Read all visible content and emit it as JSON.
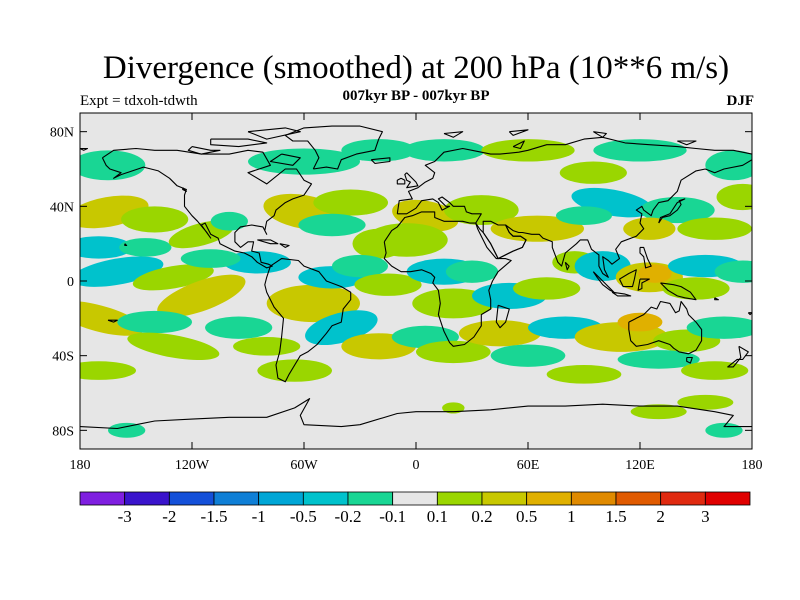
{
  "header": {
    "title": "Divergence (smoothed) at 200 hPa (10**6 m/s)",
    "subtitle": "007kyr BP - 007kyr BP",
    "experiment": "Expt = tdxoh-tdwth",
    "season": "DJF"
  },
  "axes": {
    "lat_labels": [
      "80N",
      "40N",
      "0",
      "40S",
      "80S"
    ],
    "lat_values": [
      80,
      40,
      0,
      -40,
      -80
    ],
    "lon_labels": [
      "180",
      "120W",
      "60W",
      "0",
      "60E",
      "120E",
      "180"
    ],
    "lon_values": [
      -180,
      -120,
      -60,
      0,
      60,
      120,
      180
    ],
    "lat_range": [
      -90,
      90
    ],
    "lon_range": [
      -180,
      180
    ]
  },
  "colorbar": {
    "colors": [
      "#7f1fe0",
      "#3a14cc",
      "#1450d9",
      "#0f7fd6",
      "#00a6d6",
      "#00c2cc",
      "#19d694",
      "#e6e6e6",
      "#9ad600",
      "#c8c800",
      "#e0b000",
      "#e08a00",
      "#e05a00",
      "#e02a10",
      "#e00000"
    ],
    "labels": [
      "-3",
      "-2",
      "-1.5",
      "-1",
      "-0.5",
      "-0.2",
      "-0.1",
      "0.1",
      "0.2",
      "0.5",
      "1",
      "1.5",
      "2",
      "3"
    ]
  },
  "map": {
    "background_color": "#e6e6e6",
    "coastline_color": "#000000",
    "field_colors": {
      "neg_weak": "#19d694",
      "neg_mid": "#00c2cc",
      "neg_strong": "#00a6d6",
      "pos_weak": "#9ad600",
      "pos_mid": "#c8c800",
      "pos_strong": "#e0b000"
    }
  }
}
